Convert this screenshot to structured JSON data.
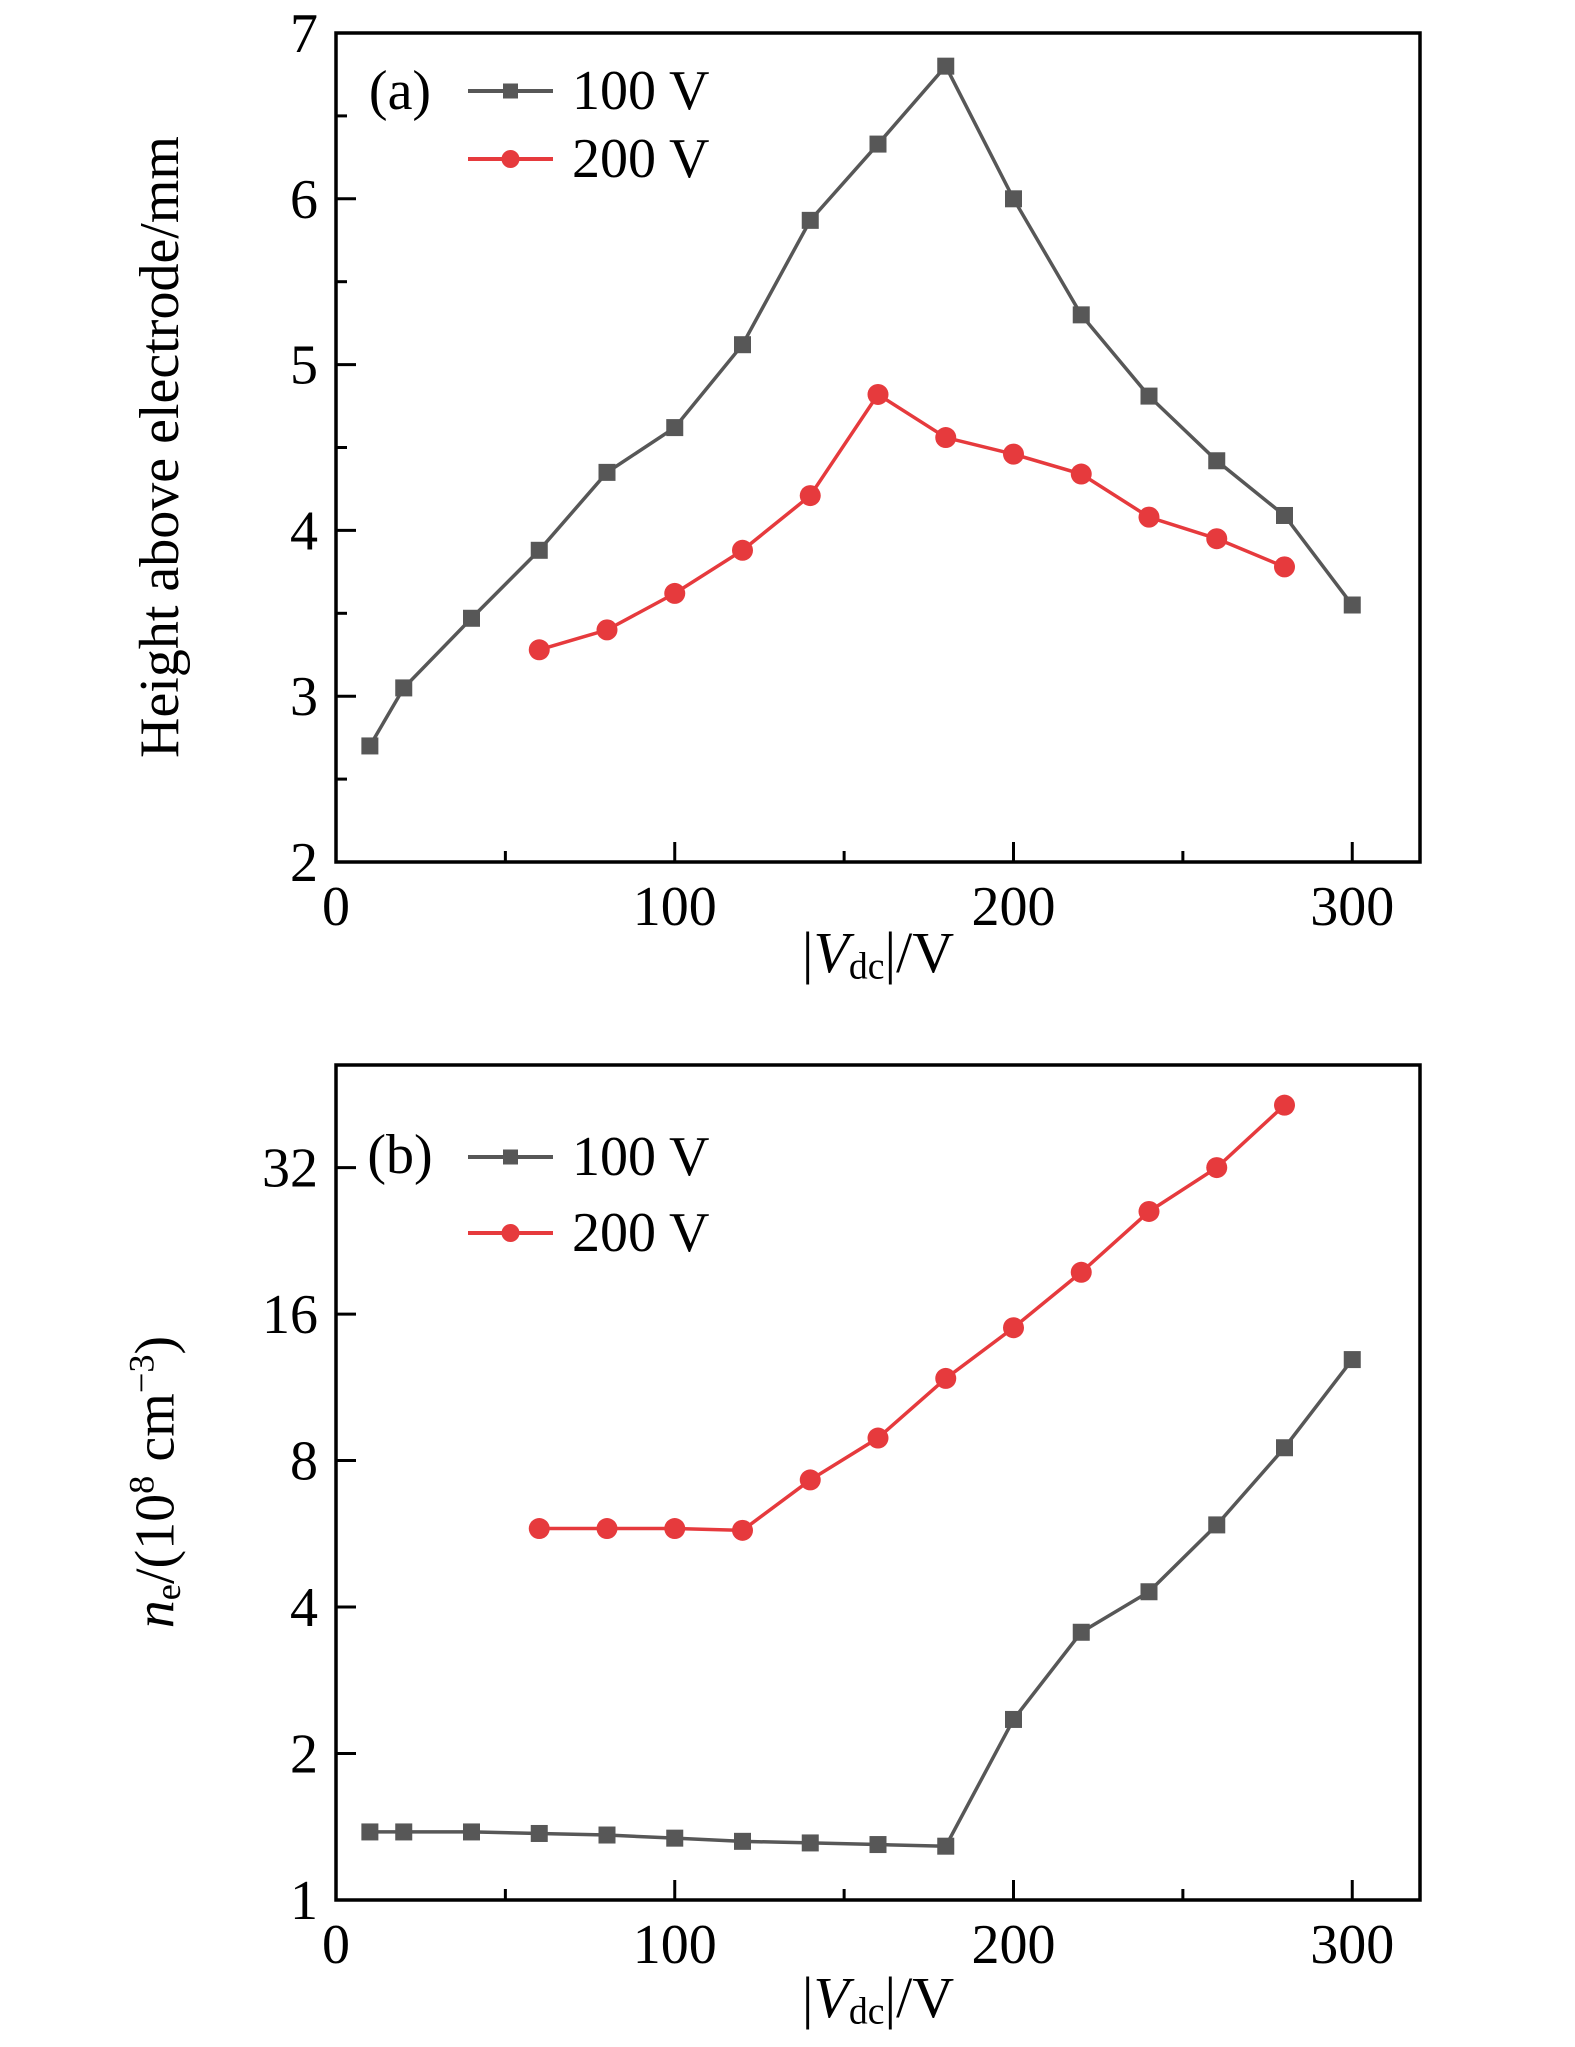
{
  "figure": {
    "background": "#ffffff",
    "axis_color": "#000000",
    "gray_series_color": "#575757",
    "red_series_color": "#e63a3d"
  },
  "chart_data": [
    {
      "type": "line",
      "panel_label": "(a)",
      "xlabel": "|Vdc|/V",
      "xlabel_parts": [
        {
          "t": "|",
          "s": "r"
        },
        {
          "t": "V",
          "s": "i"
        },
        {
          "t": "dc",
          "s": "sub"
        },
        {
          "t": "|/V",
          "s": "r"
        }
      ],
      "ylabel": "Height above electrode/mm",
      "ylabel_parts": [
        {
          "t": "Height above electrode/mm",
          "s": "r"
        }
      ],
      "x_axis": {
        "scale": "linear",
        "min": 0,
        "max": 320,
        "major_ticks": [
          0,
          100,
          200,
          300
        ],
        "minor_ticks": [
          50,
          150,
          250
        ]
      },
      "y_axis": {
        "scale": "linear",
        "min": 2,
        "max": 7,
        "major_ticks": [
          2,
          3,
          4,
          5,
          6,
          7
        ],
        "minor_ticks": [
          2.5,
          3.5,
          4.5,
          5.5,
          6.5
        ]
      },
      "grid": false,
      "legend_position": "top-left-inside",
      "series": [
        {
          "name": "100 V",
          "color": "#575757",
          "marker": "square",
          "x": [
            10,
            20,
            40,
            60,
            80,
            100,
            120,
            140,
            160,
            180,
            200,
            220,
            240,
            260,
            280,
            300
          ],
          "y": [
            2.7,
            3.05,
            3.47,
            3.88,
            4.35,
            4.62,
            5.12,
            5.87,
            6.33,
            6.8,
            6.0,
            5.3,
            4.81,
            4.42,
            4.09,
            3.55
          ]
        },
        {
          "name": "200 V",
          "color": "#e63a3d",
          "marker": "circle",
          "x": [
            60,
            80,
            100,
            120,
            140,
            160,
            180,
            200,
            220,
            240,
            260,
            280
          ],
          "y": [
            3.28,
            3.4,
            3.62,
            3.88,
            4.21,
            4.82,
            4.56,
            4.46,
            4.34,
            4.08,
            3.95,
            3.78
          ]
        }
      ]
    },
    {
      "type": "line",
      "panel_label": "(b)",
      "xlabel": "|Vdc|/V",
      "xlabel_parts": [
        {
          "t": "|",
          "s": "r"
        },
        {
          "t": "V",
          "s": "i"
        },
        {
          "t": "dc",
          "s": "sub"
        },
        {
          "t": "|/V",
          "s": "r"
        }
      ],
      "ylabel": "ne/(10^8 cm^-3)",
      "ylabel_parts": [
        {
          "t": "n",
          "s": "i"
        },
        {
          "t": "e",
          "s": "sub"
        },
        {
          "t": "/(10",
          "s": "r"
        },
        {
          "t": "8",
          "s": "sup"
        },
        {
          "t": " cm",
          "s": "r"
        },
        {
          "t": "−3",
          "s": "sup"
        },
        {
          "t": ")",
          "s": "r"
        }
      ],
      "x_axis": {
        "scale": "linear",
        "min": 0,
        "max": 320,
        "major_ticks": [
          0,
          100,
          200,
          300
        ],
        "minor_ticks": [
          50,
          150,
          250
        ]
      },
      "y_axis": {
        "scale": "log2",
        "min": 1,
        "max": 52,
        "major_ticks": [
          1,
          2,
          4,
          8,
          16,
          32
        ],
        "minor_ticks": []
      },
      "grid": false,
      "legend_position": "top-left-inside",
      "series": [
        {
          "name": "100 V",
          "color": "#575757",
          "marker": "square",
          "x": [
            10,
            20,
            40,
            60,
            80,
            100,
            120,
            140,
            160,
            180,
            200,
            220,
            240,
            260,
            280,
            300
          ],
          "y": [
            1.38,
            1.38,
            1.38,
            1.37,
            1.36,
            1.34,
            1.32,
            1.31,
            1.3,
            1.29,
            2.35,
            3.55,
            4.3,
            5.9,
            8.5,
            12.9
          ]
        },
        {
          "name": "200 V",
          "color": "#e63a3d",
          "marker": "circle",
          "x": [
            60,
            80,
            100,
            120,
            140,
            160,
            180,
            200,
            220,
            240,
            260,
            280
          ],
          "y": [
            5.8,
            5.8,
            5.8,
            5.75,
            7.3,
            8.9,
            11.8,
            15.0,
            19.5,
            26.0,
            32.0,
            43.0
          ]
        }
      ]
    }
  ]
}
